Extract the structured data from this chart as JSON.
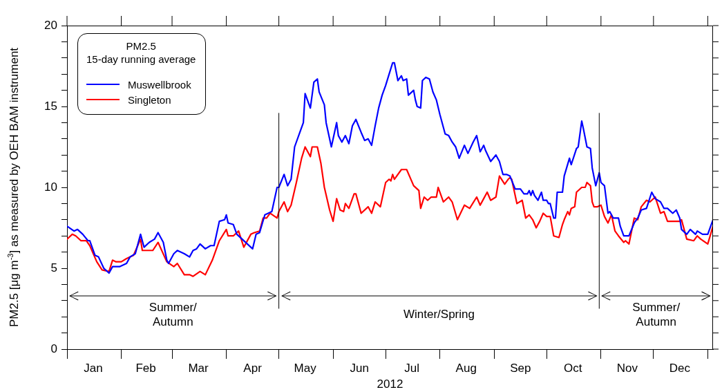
{
  "chart_data": {
    "type": "line",
    "xlabel": "2012",
    "ylabel": "PM2.5 [μg m$^{-3}$] as measured by OEH BAM instrument",
    "legend_title": "PM2.5\n15-day running average",
    "legend": "top left",
    "grid": false,
    "marker": "none",
    "line_style": "solid",
    "xlim": [
      "2012-01-01",
      "2013-01-04"
    ],
    "ylim": [
      0,
      20
    ],
    "xticks": [
      {
        "value": "2012-01-01",
        "label": null
      },
      {
        "value": "2012-01-16",
        "label": "Jan"
      },
      {
        "value": "2012-02-01",
        "label": null
      },
      {
        "value": "2012-02-15",
        "label": "Feb"
      },
      {
        "value": "2012-03-01",
        "label": null
      },
      {
        "value": "2012-03-16",
        "label": "Mar"
      },
      {
        "value": "2012-04-01",
        "label": null
      },
      {
        "value": "2012-04-16",
        "label": "Apr"
      },
      {
        "value": "2012-05-01",
        "label": null
      },
      {
        "value": "2012-05-16",
        "label": "May"
      },
      {
        "value": "2012-06-01",
        "label": null
      },
      {
        "value": "2012-06-16",
        "label": "Jun"
      },
      {
        "value": "2012-07-01",
        "label": null
      },
      {
        "value": "2012-07-16",
        "label": "Jul"
      },
      {
        "value": "2012-08-01",
        "label": null
      },
      {
        "value": "2012-08-16",
        "label": "Aug"
      },
      {
        "value": "2012-09-01",
        "label": null
      },
      {
        "value": "2012-09-16",
        "label": "Sep"
      },
      {
        "value": "2012-10-01",
        "label": null
      },
      {
        "value": "2012-10-16",
        "label": "Oct"
      },
      {
        "value": "2012-11-01",
        "label": null
      },
      {
        "value": "2012-11-16",
        "label": "Nov"
      },
      {
        "value": "2012-12-01",
        "label": null
      },
      {
        "value": "2012-12-16",
        "label": "Dec"
      },
      {
        "value": "2013-01-01",
        "label": null
      }
    ],
    "yticks": [
      0,
      {
        "value": 1,
        "label": null
      },
      {
        "value": 2,
        "label": null
      },
      {
        "value": 3,
        "label": null
      },
      {
        "value": 4,
        "label": null
      },
      5,
      {
        "value": 6,
        "label": null
      },
      {
        "value": 7,
        "label": null
      },
      {
        "value": 8,
        "label": null
      },
      {
        "value": 9,
        "label": null
      },
      10,
      {
        "value": 11,
        "label": null
      },
      {
        "value": 12,
        "label": null
      },
      {
        "value": 13,
        "label": null
      },
      {
        "value": 14,
        "label": null
      },
      15,
      {
        "value": 16,
        "label": null
      },
      {
        "value": 17,
        "label": null
      },
      {
        "value": 18,
        "label": null
      },
      {
        "value": 19,
        "label": null
      },
      20
    ],
    "ref_lines": [
      {
        "axis": "x",
        "value": "2012-05-01",
        "color": "#000000"
      },
      {
        "axis": "x",
        "value": "2012-10-31",
        "color": "#000000"
      }
    ],
    "annotations": [
      "Summer/\nAutumn",
      "Winter/Spring",
      "Summer/\nAutumn"
    ],
    "series": [
      {
        "name": "Muswellbrook",
        "color": "#0000ff",
        "x": [
          "2012-01-01",
          "2012-01-05",
          "2012-01-07",
          "2012-01-10",
          "2012-01-13",
          "2012-01-14",
          "2012-01-17",
          "2012-01-19",
          "2012-01-22",
          "2012-01-25",
          "2012-01-27",
          "2012-01-31",
          "2012-02-04",
          "2012-02-06",
          "2012-02-09",
          "2012-02-12",
          "2012-02-14",
          "2012-02-17",
          "2012-02-20",
          "2012-02-22",
          "2012-02-25",
          "2012-02-27",
          "2012-02-28",
          "2012-03-02",
          "2012-03-04",
          "2012-03-08",
          "2012-03-11",
          "2012-03-13",
          "2012-03-15",
          "2012-03-17",
          "2012-03-20",
          "2012-03-23",
          "2012-03-25",
          "2012-03-28",
          "2012-03-31",
          "2012-04-01",
          "2012-04-02",
          "2012-04-05",
          "2012-04-07",
          "2012-04-10",
          "2012-04-13",
          "2012-04-16",
          "2012-04-18",
          "2012-04-20",
          "2012-04-23",
          "2012-04-27",
          "2012-04-30",
          "2012-05-01",
          "2012-05-04",
          "2012-05-06",
          "2012-05-08",
          "2012-05-10",
          "2012-05-13",
          "2012-05-15",
          "2012-05-16",
          "2012-05-19",
          "2012-05-21",
          "2012-05-23",
          "2012-05-24",
          "2012-05-27",
          "2012-05-28",
          "2012-05-31",
          "2012-06-03",
          "2012-06-04",
          "2012-06-06",
          "2012-06-08",
          "2012-06-10",
          "2012-06-12",
          "2012-06-14",
          "2012-06-17",
          "2012-06-19",
          "2012-06-21",
          "2012-06-23",
          "2012-06-25",
          "2012-06-27",
          "2012-06-29",
          "2012-07-01",
          "2012-07-03",
          "2012-07-05",
          "2012-07-06",
          "2012-07-08",
          "2012-07-10",
          "2012-07-11",
          "2012-07-13",
          "2012-07-14",
          "2012-07-17",
          "2012-07-18",
          "2012-07-19",
          "2012-07-21",
          "2012-07-22",
          "2012-07-24",
          "2012-07-26",
          "2012-07-28",
          "2012-07-30",
          "2012-08-01",
          "2012-08-04",
          "2012-08-06",
          "2012-08-08",
          "2012-08-10",
          "2012-08-12",
          "2012-08-15",
          "2012-08-17",
          "2012-08-20",
          "2012-08-22",
          "2012-08-24",
          "2012-08-26",
          "2012-08-27",
          "2012-08-30",
          "2012-09-02",
          "2012-09-04",
          "2012-09-06",
          "2012-09-08",
          "2012-09-10",
          "2012-09-13",
          "2012-09-16",
          "2012-09-18",
          "2012-09-20",
          "2012-09-21",
          "2012-09-22",
          "2012-09-23",
          "2012-09-24",
          "2012-09-26",
          "2012-09-28",
          "2012-09-29",
          "2012-10-01",
          "2012-10-02",
          "2012-10-03",
          "2012-10-05",
          "2012-10-06",
          "2012-10-07",
          "2012-10-10",
          "2012-10-11",
          "2012-10-14",
          "2012-10-15",
          "2012-10-18",
          "2012-10-19",
          "2012-10-21",
          "2012-10-22",
          "2012-10-24",
          "2012-10-26",
          "2012-10-27",
          "2012-10-29",
          "2012-10-31",
          "2012-11-01",
          "2012-11-03",
          "2012-11-05",
          "2012-11-06",
          "2012-11-08",
          "2012-11-11",
          "2012-11-12",
          "2012-11-14",
          "2012-11-17",
          "2012-11-20",
          "2012-11-22",
          "2012-11-24",
          "2012-11-27",
          "2012-11-30",
          "2012-12-02",
          "2012-12-05",
          "2012-12-07",
          "2012-12-09",
          "2012-12-12",
          "2012-12-14",
          "2012-12-16",
          "2012-12-17",
          "2012-12-20",
          "2012-12-22",
          "2012-12-25",
          "2012-12-26",
          "2012-12-29",
          "2013-01-01",
          "2013-01-04"
        ],
        "values": [
          7.6,
          7.3,
          7.4,
          7.1,
          6.7,
          6.7,
          5.8,
          5.7,
          5.0,
          4.7,
          5.1,
          5.1,
          5.3,
          5.7,
          5.9,
          7.1,
          6.3,
          6.6,
          6.8,
          7.2,
          6.6,
          5.5,
          5.3,
          5.9,
          6.1,
          5.9,
          5.7,
          6.1,
          6.2,
          6.5,
          6.2,
          6.4,
          6.4,
          7.9,
          8.0,
          8.3,
          7.8,
          7.7,
          7.1,
          6.8,
          6.5,
          6.2,
          7.1,
          7.2,
          8.3,
          8.5,
          10.0,
          10.0,
          10.8,
          10.1,
          10.5,
          12.5,
          13.4,
          14.0,
          15.8,
          14.9,
          16.5,
          16.7,
          15.9,
          15.1,
          14.0,
          12.5,
          14.0,
          13.2,
          12.8,
          13.2,
          12.7,
          13.8,
          14.2,
          13.4,
          12.9,
          13.0,
          12.6,
          13.8,
          14.9,
          15.7,
          16.3,
          17.0,
          17.7,
          17.7,
          16.6,
          16.9,
          16.6,
          16.7,
          15.7,
          16.0,
          15.4,
          15.0,
          14.9,
          16.6,
          16.8,
          16.7,
          15.9,
          15.4,
          14.5,
          13.3,
          13.2,
          12.8,
          12.5,
          11.8,
          12.6,
          12.1,
          12.8,
          13.2,
          12.2,
          12.6,
          12.3,
          11.6,
          12.0,
          11.6,
          10.8,
          10.8,
          10.7,
          9.9,
          9.9,
          9.6,
          9.6,
          9.8,
          9.5,
          9.8,
          9.5,
          9.2,
          9.7,
          9.2,
          9.2,
          9.0,
          9.0,
          8.1,
          8.1,
          9.7,
          9.7,
          10.7,
          11.8,
          11.4,
          12.4,
          12.5,
          14.1,
          13.6,
          12.5,
          12.4,
          11.2,
          10.1,
          10.9,
          10.3,
          10.1,
          8.4,
          8.5,
          8.1,
          8.1,
          7.6,
          7.0,
          7.0,
          7.8,
          8.1,
          8.6,
          8.7,
          9.7,
          9.3,
          9.1,
          8.7,
          8.7,
          8.4,
          8.6,
          8.1,
          7.4,
          7.1,
          7.4,
          7.1,
          7.3,
          7.1,
          7.1,
          8.0
        ]
      },
      {
        "name": "Singleton",
        "color": "#ff0000",
        "x": [
          "2012-01-01",
          "2012-01-04",
          "2012-01-06",
          "2012-01-09",
          "2012-01-12",
          "2012-01-14",
          "2012-01-18",
          "2012-01-21",
          "2012-01-25",
          "2012-01-27",
          "2012-01-29",
          "2012-02-01",
          "2012-02-04",
          "2012-02-08",
          "2012-02-12",
          "2012-02-13",
          "2012-02-19",
          "2012-02-22",
          "2012-02-27",
          "2012-03-02",
          "2012-03-04",
          "2012-03-08",
          "2012-03-11",
          "2012-03-13",
          "2012-03-17",
          "2012-03-20",
          "2012-03-24",
          "2012-03-28",
          "2012-04-01",
          "2012-04-02",
          "2012-04-05",
          "2012-04-08",
          "2012-04-11",
          "2012-04-15",
          "2012-04-17",
          "2012-04-20",
          "2012-04-22",
          "2012-04-24",
          "2012-04-26",
          "2012-04-30",
          "2012-05-01",
          "2012-05-04",
          "2012-05-06",
          "2012-05-08",
          "2012-05-11",
          "2012-05-14",
          "2012-05-16",
          "2012-05-19",
          "2012-05-20",
          "2012-05-23",
          "2012-05-25",
          "2012-05-27",
          "2012-05-30",
          "2012-06-01",
          "2012-06-03",
          "2012-06-05",
          "2012-06-07",
          "2012-06-08",
          "2012-06-10",
          "2012-06-13",
          "2012-06-14",
          "2012-06-17",
          "2012-06-21",
          "2012-06-23",
          "2012-06-25",
          "2012-06-28",
          "2012-07-01",
          "2012-07-03",
          "2012-07-04",
          "2012-07-05",
          "2012-07-06",
          "2012-07-10",
          "2012-07-13",
          "2012-07-17",
          "2012-07-20",
          "2012-07-21",
          "2012-07-23",
          "2012-07-25",
          "2012-07-27",
          "2012-07-30",
          "2012-07-31",
          "2012-08-03",
          "2012-08-06",
          "2012-08-08",
          "2012-08-11",
          "2012-08-15",
          "2012-08-18",
          "2012-08-22",
          "2012-08-24",
          "2012-08-26",
          "2012-08-28",
          "2012-08-30",
          "2012-09-02",
          "2012-09-04",
          "2012-09-07",
          "2012-09-09",
          "2012-09-10",
          "2012-09-11",
          "2012-09-14",
          "2012-09-17",
          "2012-09-19",
          "2012-09-21",
          "2012-09-23",
          "2012-09-25",
          "2012-09-27",
          "2012-09-29",
          "2012-10-01",
          "2012-10-03",
          "2012-10-05",
          "2012-10-08",
          "2012-10-10",
          "2012-10-11",
          "2012-10-13",
          "2012-10-14",
          "2012-10-15",
          "2012-10-17",
          "2012-10-18",
          "2012-10-21",
          "2012-10-23",
          "2012-10-24",
          "2012-10-26",
          "2012-10-27",
          "2012-10-28",
          "2012-10-30",
          "2012-11-01",
          "2012-11-03",
          "2012-11-05",
          "2012-11-07",
          "2012-11-09",
          "2012-11-11",
          "2012-11-14",
          "2012-11-15",
          "2012-11-17",
          "2012-11-20",
          "2012-11-22",
          "2012-11-24",
          "2012-11-27",
          "2012-11-29",
          "2012-12-02",
          "2012-12-05",
          "2012-12-07",
          "2012-12-09",
          "2012-12-16",
          "2012-12-17",
          "2012-12-20",
          "2012-12-24",
          "2012-12-26",
          "2012-12-28",
          "2013-01-01",
          "2013-01-04"
        ],
        "values": [
          6.8,
          7.1,
          7.0,
          6.7,
          6.7,
          6.4,
          5.4,
          4.9,
          4.8,
          5.5,
          5.4,
          5.4,
          5.6,
          5.8,
          6.8,
          6.1,
          6.1,
          6.6,
          5.4,
          5.1,
          5.3,
          4.6,
          4.6,
          4.5,
          4.8,
          4.6,
          5.5,
          6.7,
          7.4,
          7.0,
          7.0,
          7.3,
          6.3,
          7.1,
          7.2,
          7.3,
          8.1,
          8.1,
          8.4,
          8.1,
          8.5,
          9.1,
          8.5,
          8.9,
          10.3,
          11.8,
          12.5,
          11.9,
          12.5,
          12.5,
          11.5,
          10.0,
          8.6,
          7.9,
          9.3,
          8.6,
          8.5,
          9.0,
          8.7,
          9.6,
          9.6,
          8.4,
          8.8,
          8.4,
          9.1,
          8.8,
          10.3,
          10.5,
          10.4,
          10.8,
          10.5,
          11.1,
          11.1,
          10.1,
          9.8,
          8.7,
          9.4,
          9.2,
          9.4,
          9.4,
          10.0,
          9.1,
          9.4,
          9.1,
          8.0,
          8.9,
          8.7,
          9.4,
          8.9,
          9.3,
          9.7,
          9.2,
          9.4,
          10.7,
          10.2,
          10.5,
          10.6,
          10.5,
          9.0,
          9.2,
          8.1,
          8.3,
          8.0,
          7.5,
          7.9,
          8.4,
          8.2,
          8.2,
          7.0,
          6.9,
          7.7,
          8.0,
          8.5,
          8.3,
          8.7,
          8.8,
          9.7,
          10.0,
          10.0,
          10.3,
          10.1,
          9.1,
          8.8,
          8.8,
          8.9,
          8.2,
          7.8,
          8.3,
          7.3,
          7.0,
          6.6,
          6.7,
          6.5,
          8.1,
          8.0,
          8.8,
          9.2,
          9.1,
          9.4,
          8.4,
          8.5,
          7.9,
          7.9,
          8.0,
          6.8,
          6.7,
          7.0,
          6.8,
          6.5,
          7.6
        ]
      }
    ]
  }
}
